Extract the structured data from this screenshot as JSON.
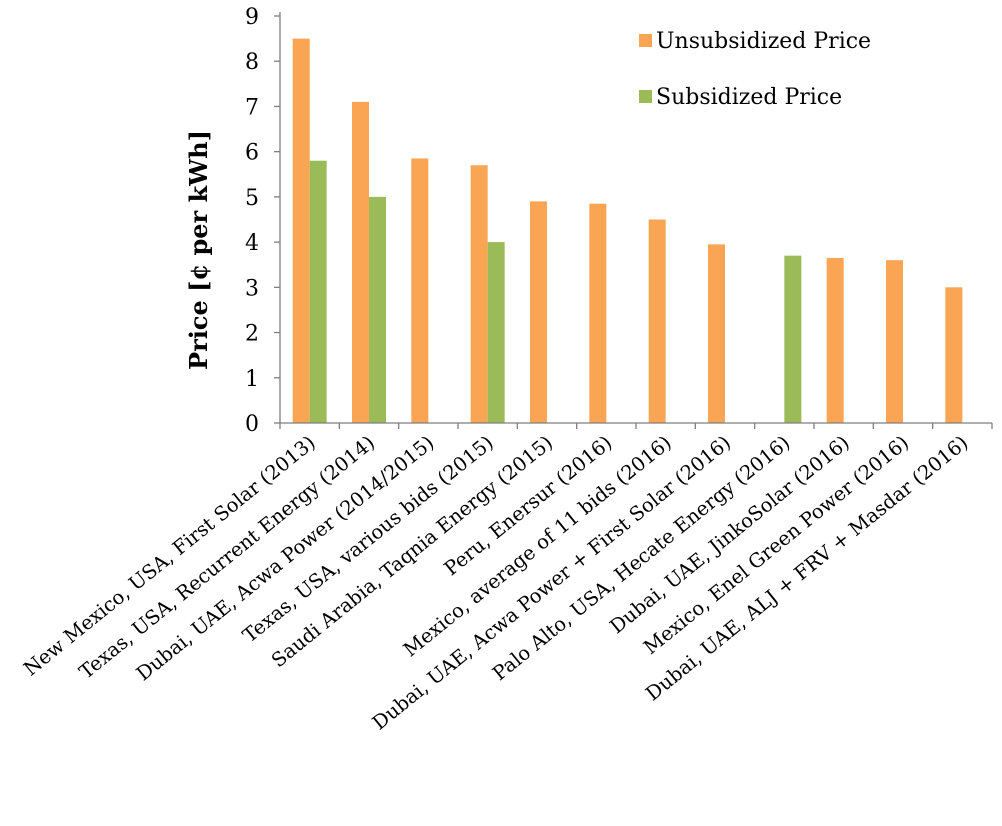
{
  "chart_data": {
    "type": "bar",
    "title": "",
    "xlabel": "",
    "ylabel": "Price [¢ per kWh]",
    "ylim": [
      0,
      9
    ],
    "yticks": [
      "0",
      "1",
      "2",
      "3",
      "4",
      "5",
      "6",
      "7",
      "8",
      "9"
    ],
    "grid": false,
    "legend_position": "top-right",
    "categories": [
      "New Mexico, USA, First Solar (2013)",
      "Texas, USA, Recurrent Energy (2014)",
      "Dubai, UAE, Acwa Power (2014/2015)",
      "Texas, USA, various bids (2015)",
      "Saudi Arabia, Taqnia Energy (2015)",
      "Peru, Enersur (2016)",
      "Mexico, average of 11 bids (2016)",
      "Dubai, UAE, Acwa Power + First Solar (2016)",
      "Palo Alto, USA, Hecate Energy (2016)",
      "Dubai, UAE, JinkoSolar (2016)",
      "Mexico, Enel Green Power (2016)",
      "Dubai, UAE, ALJ + FRV + Masdar (2016)"
    ],
    "series": [
      {
        "name": "Unsubsidized Price",
        "color": "#F9A553",
        "values": [
          8.5,
          7.1,
          5.85,
          5.7,
          4.9,
          4.85,
          4.5,
          3.95,
          null,
          3.65,
          3.6,
          3.0
        ]
      },
      {
        "name": "Subsidized Price",
        "color": "#9BBB59",
        "values": [
          5.8,
          5.0,
          null,
          4.0,
          null,
          null,
          null,
          null,
          3.7,
          null,
          null,
          null
        ]
      }
    ]
  }
}
